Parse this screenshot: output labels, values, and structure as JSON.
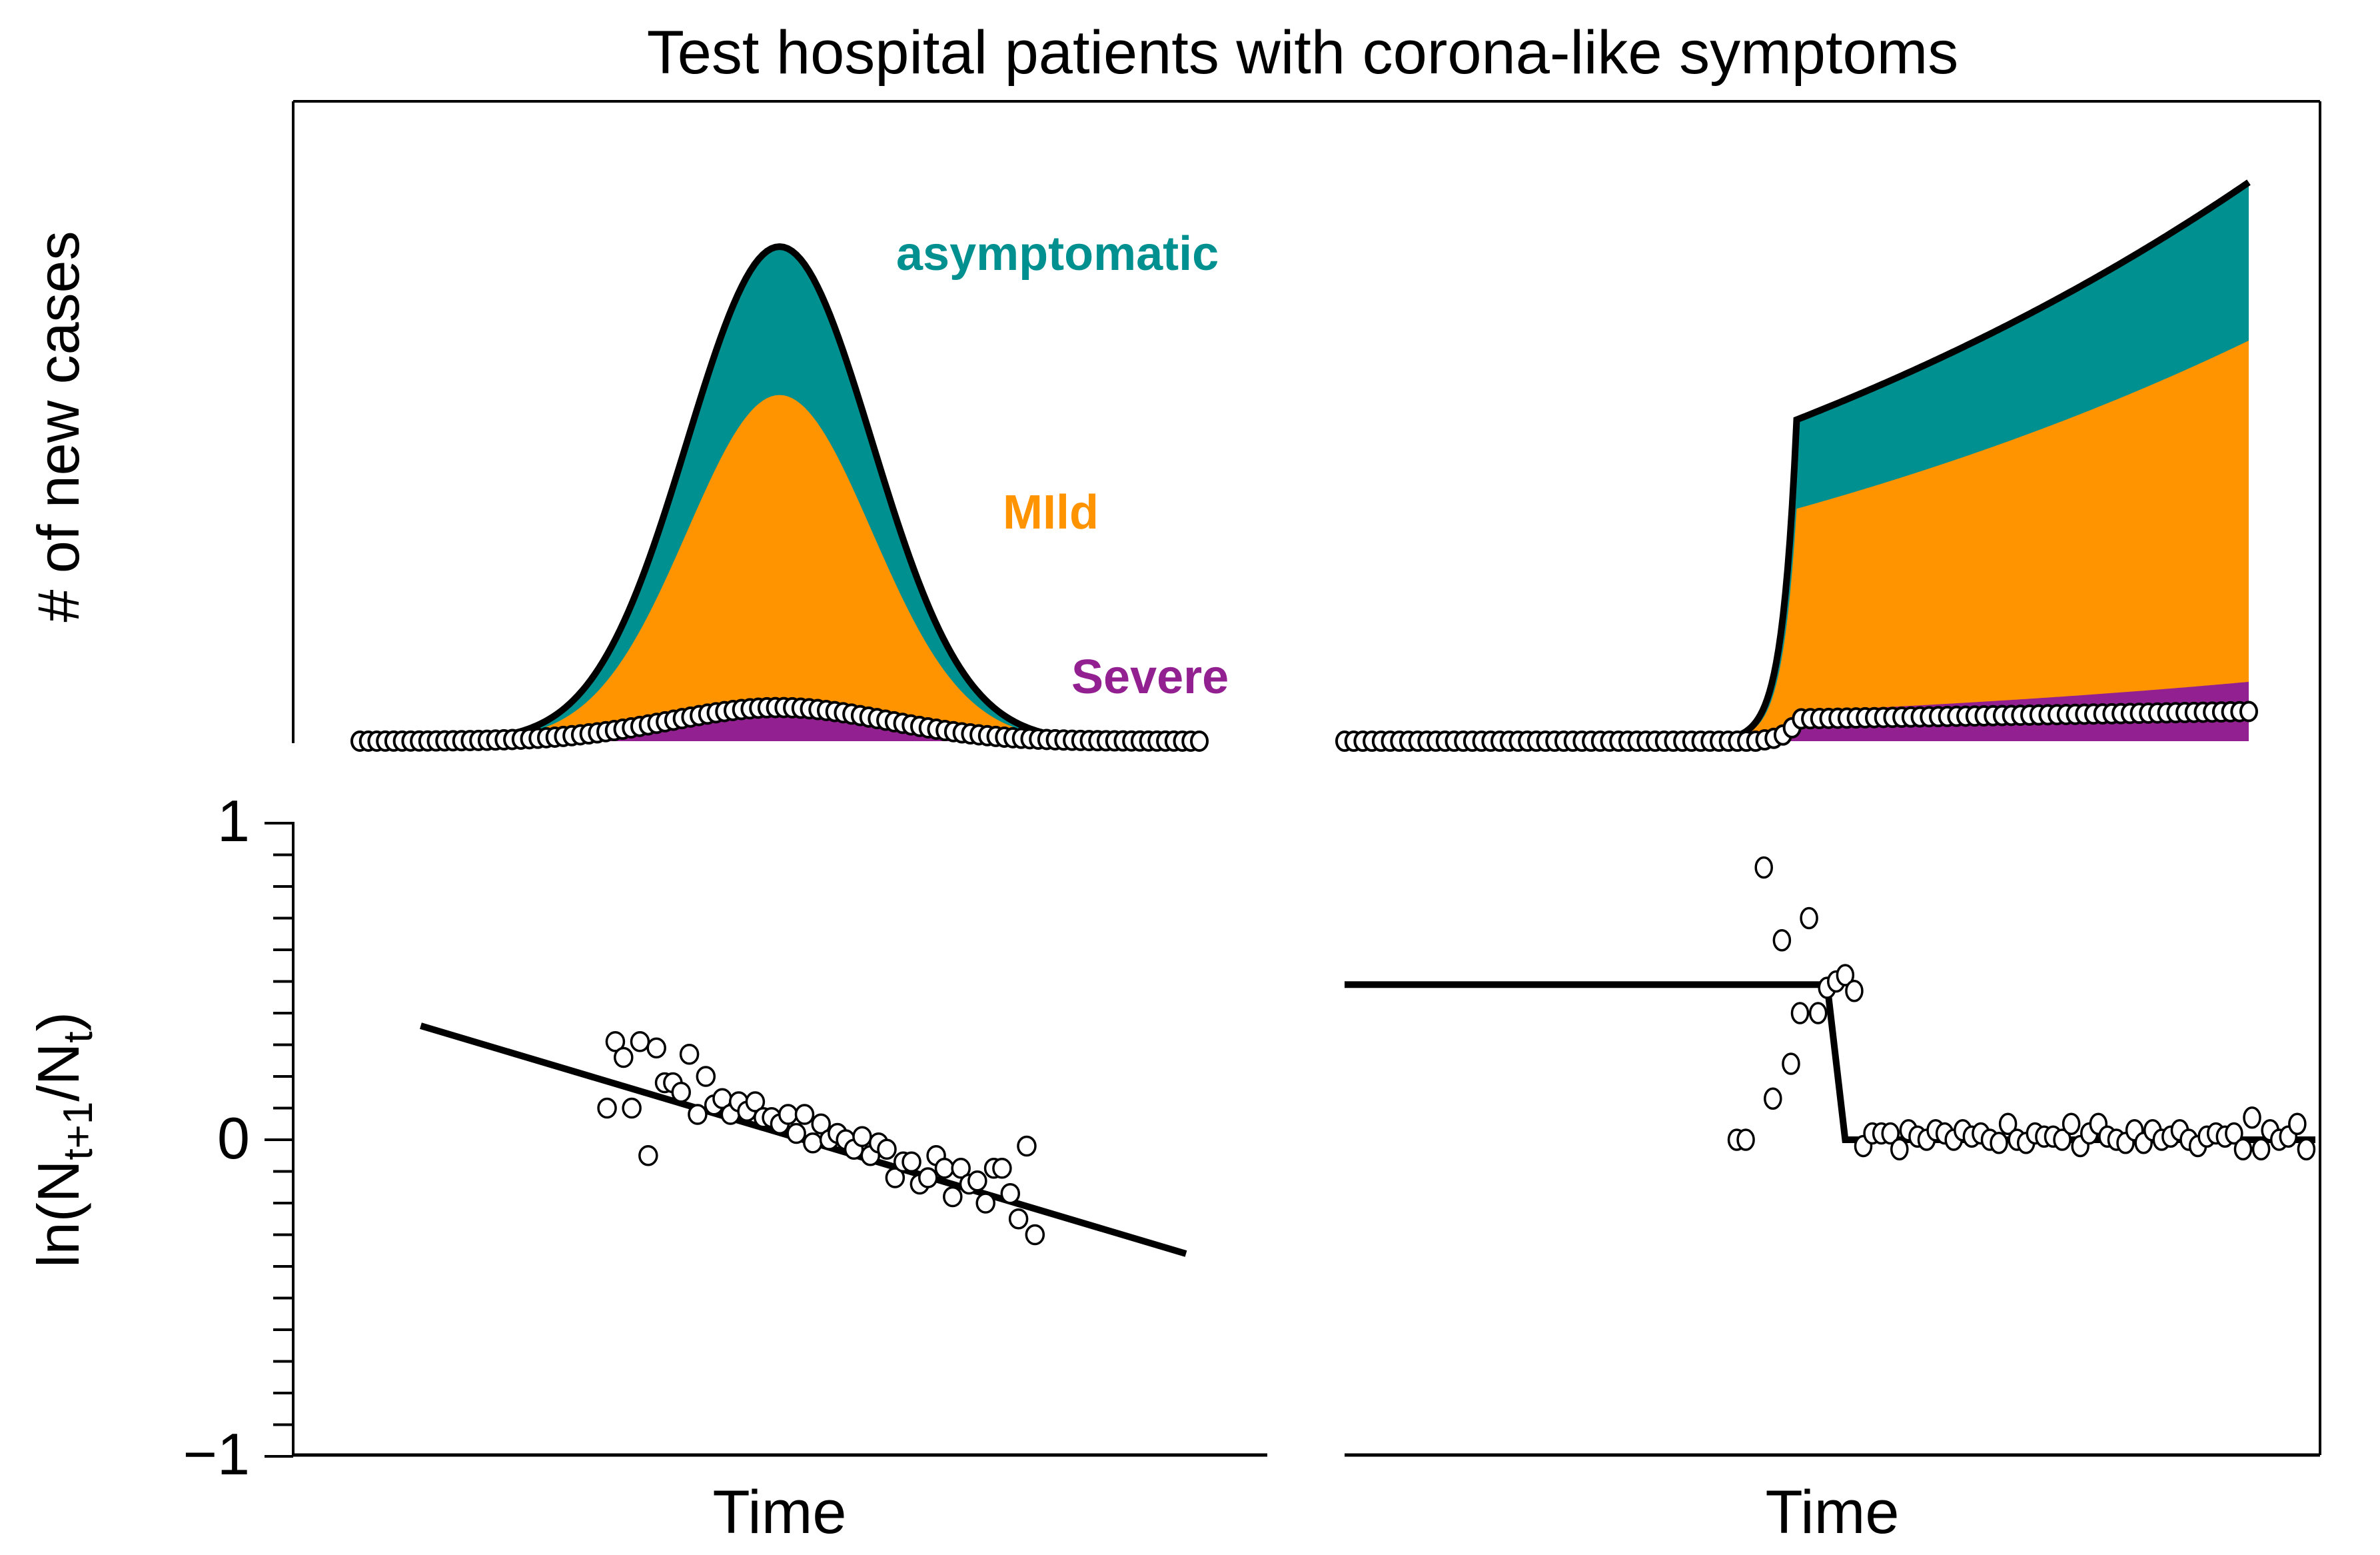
{
  "title": "Test hospital patients with corona-like symptoms",
  "colors": {
    "asymptomatic": "#009090",
    "mild": "#ff9300",
    "severe": "#922090",
    "line": "#000000",
    "point_fill": "#ffffff"
  },
  "chart_data": [
    {
      "id": "top-left",
      "type": "area",
      "title": "",
      "xlabel": "",
      "ylabel": "# of new cases",
      "grid": false,
      "x_range": [
        0,
        100
      ],
      "y_range": [
        0,
        1
      ],
      "description": "Stacked areas of new cases by symptom class for an epidemic peak; open circles show tested (severe-only) observed counts",
      "series": [
        {
          "name": "Severe",
          "label": "Severe",
          "shape": "gaussian",
          "center": 50,
          "width": 11,
          "peak": 0.075
        },
        {
          "name": "Mild",
          "label": "MIld",
          "shape": "gaussian",
          "center": 50,
          "width": 11,
          "peak": 0.7
        },
        {
          "name": "asymptomatic",
          "label": "asymptomatic",
          "shape": "gaussian",
          "center": 50,
          "width": 11,
          "peak": 1.0
        }
      ],
      "points": {
        "shape": "gaussian",
        "center": 50,
        "width": 13,
        "peak": 0.068,
        "count": 100
      }
    },
    {
      "id": "top-right",
      "type": "area",
      "title": "",
      "xlabel": "",
      "ylabel": "",
      "grid": false,
      "x_range": [
        0,
        100
      ],
      "y_range": [
        0,
        1
      ],
      "description": "Exponential growth of new cases with a jump when testing policy begins at t≈50",
      "switch_time": 50,
      "series": [
        {
          "name": "Severe",
          "before": "exponential",
          "after_start": 0.06,
          "after_end": 0.12
        },
        {
          "name": "Mild",
          "after_start": 0.47,
          "after_end": 0.81
        },
        {
          "name": "asymptomatic",
          "after_start": 0.65,
          "after_end": 1.13
        }
      ],
      "points": {
        "before_start": 0.0,
        "jump_value": 0.04,
        "after_start": 0.045,
        "after_end": 0.06,
        "count": 100
      }
    },
    {
      "id": "bottom-left",
      "type": "scatter",
      "title": "",
      "xlabel": "Time",
      "ylabel": "ln(N_{t+1}/N_t)",
      "grid": false,
      "x_range": [
        0,
        100
      ],
      "ylim": [
        -1,
        1
      ],
      "yticks": [
        1,
        0,
        -1
      ],
      "ytick_labels": [
        "1",
        "0",
        "−1"
      ],
      "minor_tick_step": 0.1,
      "fit_line": {
        "x": [
          7,
          100
        ],
        "y": [
          0.36,
          -0.36
        ]
      },
      "x": [
        26,
        27,
        28,
        29,
        30,
        31,
        32,
        33,
        34,
        35,
        36,
        37,
        38,
        39,
        40,
        41,
        42,
        43,
        44,
        45,
        46,
        47,
        48,
        49,
        50,
        51,
        52,
        53,
        54,
        55,
        56,
        57,
        58,
        59,
        60,
        61,
        62,
        63,
        64,
        65,
        66,
        67,
        68,
        69,
        70,
        71,
        72,
        73,
        74,
        75,
        76,
        77,
        78
      ],
      "y": [
        0.1,
        0.31,
        0.26,
        0.1,
        0.31,
        -0.05,
        0.29,
        0.18,
        0.18,
        0.15,
        0.27,
        0.08,
        0.2,
        0.11,
        0.13,
        0.08,
        0.12,
        0.09,
        0.12,
        0.07,
        0.07,
        0.05,
        0.08,
        0.02,
        0.08,
        -0.01,
        0.05,
        0.0,
        0.02,
        0.0,
        -0.03,
        0.01,
        -0.05,
        -0.01,
        -0.03,
        -0.12,
        -0.07,
        -0.07,
        -0.14,
        -0.12,
        -0.05,
        -0.09,
        -0.18,
        -0.09,
        -0.14,
        -0.13,
        -0.2,
        -0.09,
        -0.09,
        -0.17,
        -0.25,
        -0.02,
        -0.3
      ]
    },
    {
      "id": "bottom-right",
      "type": "scatter",
      "title": "",
      "xlabel": "Time",
      "ylabel": "",
      "grid": false,
      "x_range": [
        0,
        100
      ],
      "ylim": [
        -1,
        1
      ],
      "fit_line": {
        "x": [
          0,
          46,
          48,
          100
        ],
        "y": [
          0.49,
          0.49,
          0.0,
          0.0
        ]
      },
      "x": [
        36,
        37,
        39,
        40,
        41,
        42,
        43,
        44,
        45,
        46,
        47,
        48,
        49,
        50,
        51,
        52,
        53,
        54,
        55,
        56,
        57,
        58,
        59,
        60,
        61,
        62,
        63,
        64,
        65,
        66,
        67,
        68,
        69,
        70,
        71,
        72,
        73,
        74,
        75,
        76,
        77,
        78,
        79,
        80,
        81,
        82,
        83,
        84,
        85,
        86,
        87,
        88,
        89,
        90,
        91,
        92,
        93,
        94,
        95,
        96,
        97,
        98,
        99
      ],
      "y": [
        0.0,
        0.0,
        0.86,
        0.13,
        0.63,
        0.24,
        0.4,
        0.7,
        0.4,
        0.48,
        0.5,
        0.52,
        0.47,
        -0.02,
        0.02,
        0.02,
        0.02,
        -0.03,
        0.03,
        0.01,
        0.0,
        0.03,
        0.02,
        0.0,
        0.03,
        0.01,
        0.02,
        0.0,
        -0.01,
        0.05,
        0.0,
        -0.01,
        0.02,
        0.01,
        0.01,
        0.0,
        0.05,
        -0.02,
        0.02,
        0.05,
        0.01,
        0.0,
        -0.01,
        0.03,
        -0.01,
        0.03,
        0.0,
        0.01,
        0.03,
        0.0,
        -0.02,
        0.01,
        0.02,
        0.01,
        0.02,
        -0.03,
        0.07,
        -0.03,
        0.03,
        0.0,
        0.01,
        0.05,
        -0.03
      ]
    }
  ],
  "labels": {
    "asymptomatic": "asymptomatic",
    "mild": "MIld",
    "severe": "Severe",
    "ylabel_top": "# of new cases",
    "ylabel_bottom_main": "ln(N",
    "ylabel_bottom_sub1": "t+1",
    "ylabel_bottom_mid": "/N",
    "ylabel_bottom_sub2": "t",
    "ylabel_bottom_end": ")",
    "xlabel_left": "Time",
    "xlabel_right": "Time",
    "tick_1": "1",
    "tick_0": "0",
    "tick_m1": "−1"
  }
}
